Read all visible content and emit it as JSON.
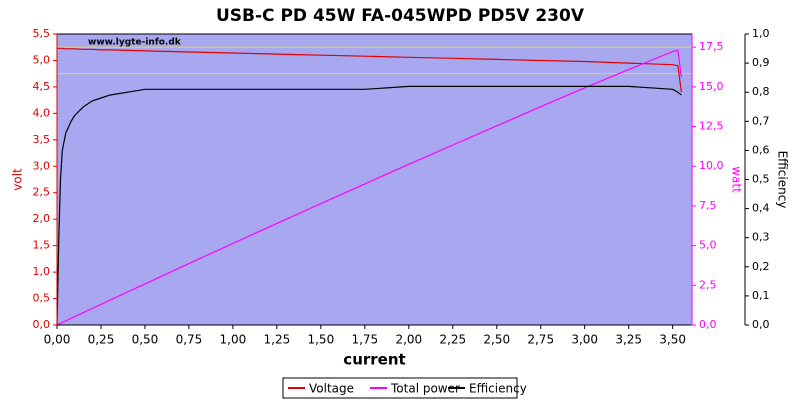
{
  "chart_data": {
    "type": "line",
    "title": "USB-C PD 45W FA-045WPD PD5V 230V",
    "watermark": "www.lygte-info.dk",
    "xlabel": "current",
    "ylabel": "volt",
    "y2label": "watt",
    "y3label": "Efficiency",
    "background": "#a8a8f0",
    "x": [
      0,
      0.01,
      0.02,
      0.03,
      0.05,
      0.08,
      0.1,
      0.15,
      0.2,
      0.25,
      0.3,
      0.4,
      0.5,
      0.75,
      1.0,
      1.25,
      1.5,
      1.75,
      2.0,
      2.25,
      2.5,
      2.75,
      3.0,
      3.25,
      3.5,
      3.53,
      3.55
    ],
    "series": [
      {
        "name": "Voltage",
        "color": "#e00000",
        "axis": "y",
        "values": [
          5.23,
          5.23,
          5.23,
          5.23,
          5.22,
          5.22,
          5.22,
          5.21,
          5.21,
          5.2,
          5.2,
          5.19,
          5.18,
          5.16,
          5.14,
          5.12,
          5.1,
          5.08,
          5.06,
          5.04,
          5.02,
          5.0,
          4.98,
          4.95,
          4.92,
          4.9,
          4.4
        ]
      },
      {
        "name": "Total power",
        "color": "#ff00ff",
        "axis": "y2",
        "values": [
          0,
          0.05,
          0.1,
          0.16,
          0.26,
          0.42,
          0.52,
          0.78,
          1.04,
          1.3,
          1.56,
          2.08,
          2.59,
          3.87,
          5.14,
          6.4,
          7.65,
          8.89,
          10.12,
          11.34,
          12.55,
          13.75,
          14.94,
          16.09,
          17.22,
          17.3,
          15.6
        ]
      },
      {
        "name": "Efficiency",
        "color": "#000000",
        "axis": "y3",
        "values": [
          0,
          0.3,
          0.5,
          0.6,
          0.66,
          0.7,
          0.72,
          0.75,
          0.77,
          0.78,
          0.79,
          0.8,
          0.81,
          0.81,
          0.81,
          0.81,
          0.81,
          0.81,
          0.82,
          0.82,
          0.82,
          0.82,
          0.82,
          0.82,
          0.81,
          0.8,
          0.79
        ]
      }
    ],
    "hlines": [
      {
        "value": 5.25,
        "color": "#e6e600"
      },
      {
        "value": 4.75,
        "color": "#e6e600"
      }
    ],
    "xlim": [
      0,
      3.61
    ],
    "xticks": [
      {
        "value": 0,
        "label": "0,00"
      },
      {
        "value": 0.25,
        "label": "0,25"
      },
      {
        "value": 0.5,
        "label": "0,50"
      },
      {
        "value": 0.75,
        "label": "0,75"
      },
      {
        "value": 1,
        "label": "1,00"
      },
      {
        "value": 1.25,
        "label": "1,25"
      },
      {
        "value": 1.5,
        "label": "1,50"
      },
      {
        "value": 1.75,
        "label": "1,75"
      },
      {
        "value": 2,
        "label": "2,00"
      },
      {
        "value": 2.25,
        "label": "2,25"
      },
      {
        "value": 2.5,
        "label": "2,50"
      },
      {
        "value": 2.75,
        "label": "2,75"
      },
      {
        "value": 3,
        "label": "3,00"
      },
      {
        "value": 3.25,
        "label": "3,25"
      },
      {
        "value": 3.5,
        "label": "3,50"
      }
    ],
    "ylim": [
      0,
      5.5
    ],
    "yticks": [
      {
        "value": 0,
        "label": "0,0"
      },
      {
        "value": 0.5,
        "label": "0,5"
      },
      {
        "value": 1,
        "label": "1,0"
      },
      {
        "value": 1.5,
        "label": "1,5"
      },
      {
        "value": 2,
        "label": "2,0"
      },
      {
        "value": 2.5,
        "label": "2,5"
      },
      {
        "value": 3,
        "label": "3,0"
      },
      {
        "value": 3.5,
        "label": "3,5"
      },
      {
        "value": 4,
        "label": "4,0"
      },
      {
        "value": 4.5,
        "label": "4,5"
      },
      {
        "value": 5,
        "label": "5,0"
      },
      {
        "value": 5.5,
        "label": "5,5"
      }
    ],
    "y2lim": [
      0,
      18.33
    ],
    "y2ticks": [
      {
        "value": 0,
        "label": "0,0"
      },
      {
        "value": 2.5,
        "label": "2,5"
      },
      {
        "value": 5,
        "label": "5,0"
      },
      {
        "value": 7.5,
        "label": "7,5"
      },
      {
        "value": 10,
        "label": "10,0"
      },
      {
        "value": 12.5,
        "label": "12,5"
      },
      {
        "value": 15,
        "label": "15,0"
      },
      {
        "value": 17.5,
        "label": "17,5"
      }
    ],
    "y3lim": [
      0,
      1
    ],
    "y3ticks": [
      {
        "value": 0,
        "label": "0,0"
      },
      {
        "value": 0.1,
        "label": "0,1"
      },
      {
        "value": 0.2,
        "label": "0,2"
      },
      {
        "value": 0.3,
        "label": "0,3"
      },
      {
        "value": 0.4,
        "label": "0,4"
      },
      {
        "value": 0.5,
        "label": "0,5"
      },
      {
        "value": 0.6,
        "label": "0,6"
      },
      {
        "value": 0.7,
        "label": "0,7"
      },
      {
        "value": 0.8,
        "label": "0,8"
      },
      {
        "value": 0.9,
        "label": "0,9"
      },
      {
        "value": 1,
        "label": "1,0"
      }
    ]
  }
}
